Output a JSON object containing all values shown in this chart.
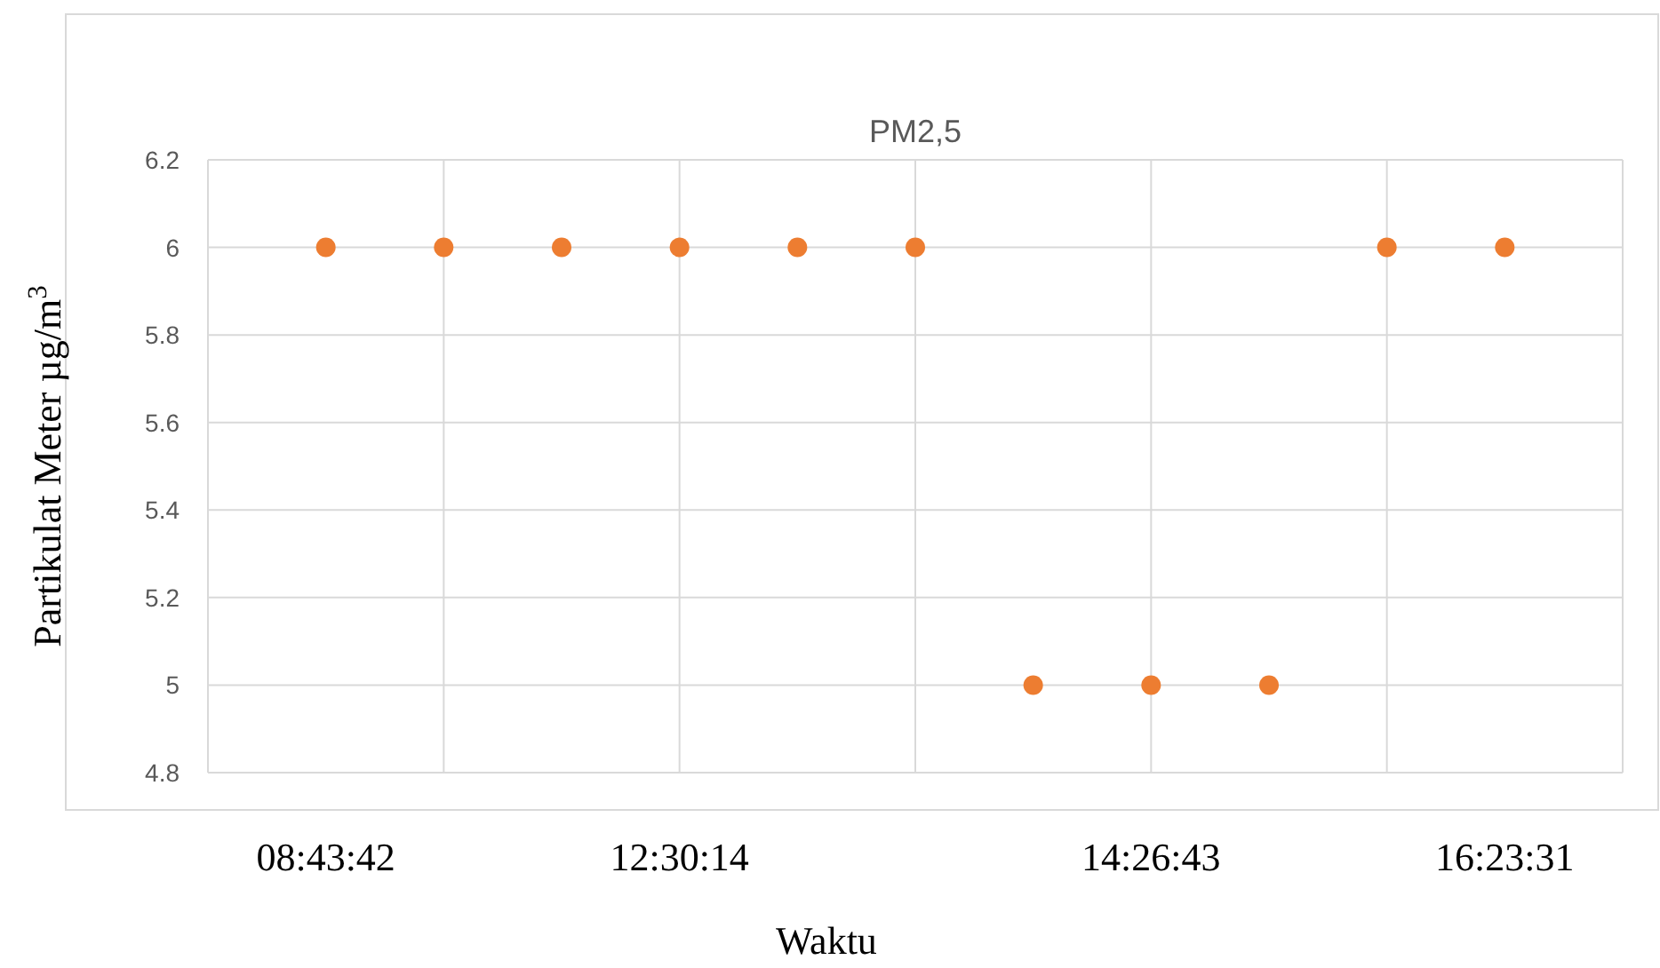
{
  "chart_data": {
    "type": "scatter",
    "title": "PM2,5",
    "xlabel": "Waktu",
    "ylabel": "Partikulat Meter µg/m$^{3}$",
    "categories": [
      "08:43:42",
      null,
      null,
      "12:30:14",
      null,
      null,
      null,
      "14:26:43",
      null,
      null,
      "16:23:31"
    ],
    "series": [
      {
        "color": "#ed7d31",
        "values": [
          6,
          6,
          6,
          6,
          6,
          6,
          5,
          5,
          5,
          6,
          6
        ]
      }
    ],
    "ylim": [
      4.8,
      6.2
    ],
    "yticks": [
      4.8,
      5,
      5.2,
      5.4,
      5.6,
      5.8,
      6,
      6.2
    ],
    "grid": true,
    "marker": "circle"
  }
}
